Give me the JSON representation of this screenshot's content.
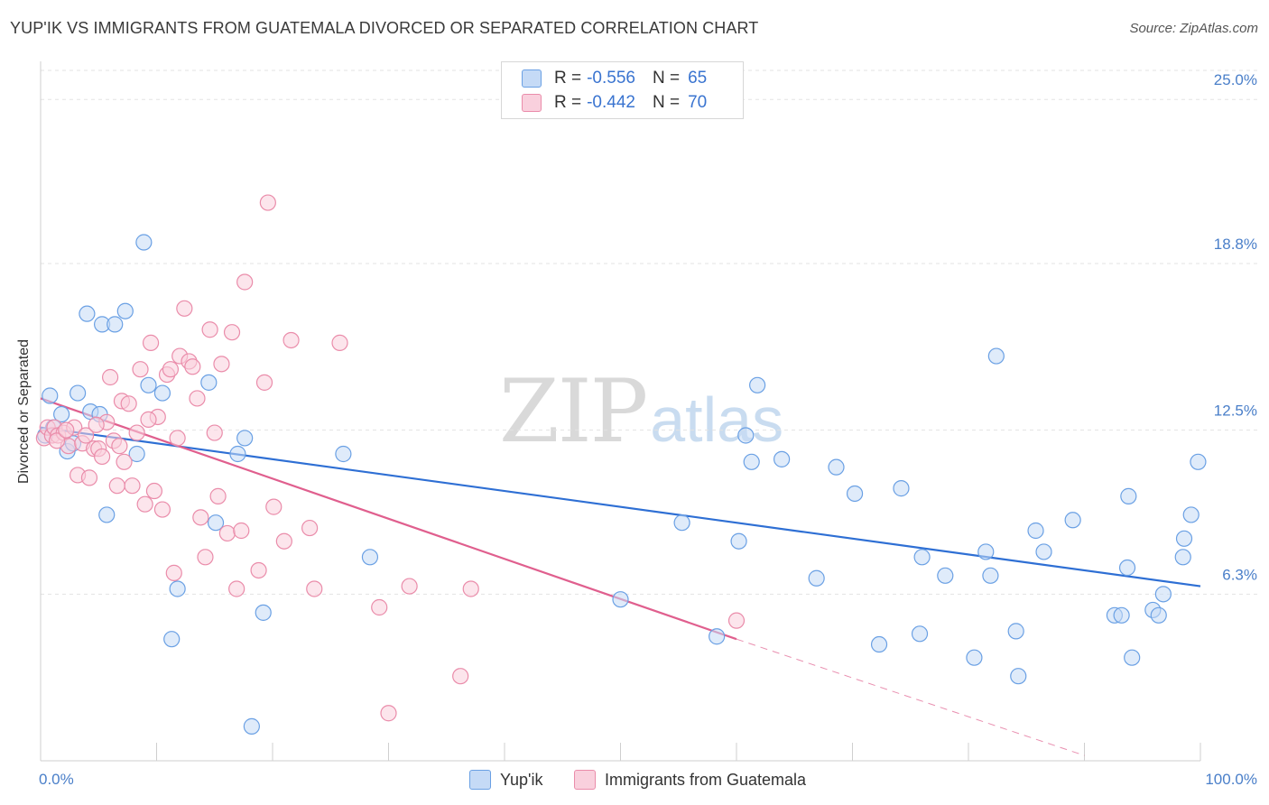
{
  "header": {
    "title": "YUP'IK VS IMMIGRANTS FROM GUATEMALA DIVORCED OR SEPARATED CORRELATION CHART",
    "source": "Source: ZipAtlas.com"
  },
  "watermark": {
    "zip": "ZIP",
    "atlas": "atlas"
  },
  "legend": {
    "rows": [
      {
        "r_label": "R =",
        "r_value": "-0.556",
        "n_label": "N =",
        "n_value": "65",
        "color": "#6aa0e4",
        "fill": "#c5daf6"
      },
      {
        "r_label": "R =",
        "r_value": "-0.442",
        "n_label": "N =",
        "n_value": "70",
        "color": "#ea8caa",
        "fill": "#f9d0dd"
      }
    ]
  },
  "bottom_legend": {
    "series_1": "Yup'ik",
    "series_2": "Immigrants from Guatemala"
  },
  "chart_data": {
    "type": "scatter",
    "title": "YUP'IK VS IMMIGRANTS FROM GUATEMALA DIVORCED OR SEPARATED CORRELATION CHART",
    "xlabel": "",
    "ylabel": "Divorced or Separated",
    "xlim": [
      0,
      100
    ],
    "ylim": [
      0,
      26.1
    ],
    "x_tick_labels": [
      "0.0%",
      "100.0%"
    ],
    "y_ticks": [
      6.3,
      12.5,
      18.8,
      25.0
    ],
    "y_tick_labels": [
      "6.3%",
      "12.5%",
      "18.8%",
      "25.0%"
    ],
    "grid": true,
    "legend_position": "top-center",
    "series": [
      {
        "name": "Yup'ik",
        "color": "#6aa0e4",
        "fill": "#c5daf6",
        "trend_color": "#2e6fd4",
        "trend": {
          "x0": 0,
          "y0": 12.6,
          "x1": 100,
          "y1": 6.6,
          "dash_to": null
        },
        "points": [
          [
            0.4,
            12.3
          ],
          [
            0.8,
            13.8
          ],
          [
            1.1,
            12.6
          ],
          [
            1.8,
            13.1
          ],
          [
            2.3,
            11.7
          ],
          [
            2.8,
            12.0
          ],
          [
            3.2,
            13.9
          ],
          [
            4.0,
            16.9
          ],
          [
            4.3,
            13.2
          ],
          [
            5.1,
            13.1
          ],
          [
            5.3,
            16.5
          ],
          [
            5.7,
            9.3
          ],
          [
            6.4,
            16.5
          ],
          [
            7.3,
            17.0
          ],
          [
            8.3,
            11.6
          ],
          [
            8.9,
            19.6
          ],
          [
            9.3,
            14.2
          ],
          [
            10.5,
            13.9
          ],
          [
            11.3,
            4.6
          ],
          [
            11.8,
            6.5
          ],
          [
            14.5,
            14.3
          ],
          [
            15.1,
            9.0
          ],
          [
            17.0,
            11.6
          ],
          [
            17.6,
            12.2
          ],
          [
            18.2,
            1.3
          ],
          [
            19.2,
            5.6
          ],
          [
            26.1,
            11.6
          ],
          [
            28.4,
            7.7
          ],
          [
            50.0,
            6.1
          ],
          [
            55.3,
            9.0
          ],
          [
            58.3,
            4.7
          ],
          [
            60.2,
            8.3
          ],
          [
            60.8,
            12.3
          ],
          [
            61.3,
            11.3
          ],
          [
            61.8,
            14.2
          ],
          [
            63.9,
            11.4
          ],
          [
            66.9,
            6.9
          ],
          [
            68.6,
            11.1
          ],
          [
            70.2,
            10.1
          ],
          [
            72.3,
            4.4
          ],
          [
            74.2,
            10.3
          ],
          [
            75.8,
            4.8
          ],
          [
            76.0,
            7.7
          ],
          [
            78.0,
            7.0
          ],
          [
            80.5,
            3.9
          ],
          [
            81.5,
            7.9
          ],
          [
            81.9,
            7.0
          ],
          [
            82.4,
            15.3
          ],
          [
            84.1,
            4.9
          ],
          [
            84.3,
            3.2
          ],
          [
            85.8,
            8.7
          ],
          [
            86.5,
            7.9
          ],
          [
            89.0,
            9.1
          ],
          [
            92.6,
            5.5
          ],
          [
            93.2,
            5.5
          ],
          [
            93.7,
            7.3
          ],
          [
            93.8,
            10.0
          ],
          [
            94.1,
            3.9
          ],
          [
            95.9,
            5.7
          ],
          [
            96.4,
            5.5
          ],
          [
            96.8,
            6.3
          ],
          [
            98.5,
            7.7
          ],
          [
            98.6,
            8.4
          ],
          [
            99.2,
            9.3
          ],
          [
            99.8,
            11.3
          ]
        ]
      },
      {
        "name": "Immigrants from Guatemala",
        "color": "#ea8caa",
        "fill": "#f9d0dd",
        "trend_color": "#e05f8e",
        "trend": {
          "x0": 0,
          "y0": 13.7,
          "x1": 60,
          "y1": 4.6,
          "dash_to": [
            90,
            0.2
          ]
        },
        "points": [
          [
            0.3,
            12.2
          ],
          [
            0.6,
            12.6
          ],
          [
            1.0,
            12.3
          ],
          [
            1.2,
            12.6
          ],
          [
            1.5,
            12.3
          ],
          [
            2.0,
            12.4
          ],
          [
            2.4,
            11.9
          ],
          [
            2.9,
            12.6
          ],
          [
            3.2,
            10.8
          ],
          [
            3.6,
            12.0
          ],
          [
            3.9,
            12.3
          ],
          [
            4.2,
            10.7
          ],
          [
            4.6,
            11.8
          ],
          [
            5.0,
            11.8
          ],
          [
            5.3,
            11.5
          ],
          [
            5.7,
            12.8
          ],
          [
            6.0,
            14.5
          ],
          [
            6.3,
            12.1
          ],
          [
            6.6,
            10.4
          ],
          [
            7.0,
            13.6
          ],
          [
            7.2,
            11.3
          ],
          [
            7.6,
            13.5
          ],
          [
            7.9,
            10.4
          ],
          [
            8.3,
            12.4
          ],
          [
            8.6,
            14.8
          ],
          [
            9.0,
            9.7
          ],
          [
            9.5,
            15.8
          ],
          [
            9.8,
            10.2
          ],
          [
            10.1,
            13.0
          ],
          [
            10.5,
            9.5
          ],
          [
            10.9,
            14.6
          ],
          [
            11.2,
            14.8
          ],
          [
            11.5,
            7.1
          ],
          [
            12.0,
            15.3
          ],
          [
            12.4,
            17.1
          ],
          [
            12.8,
            15.1
          ],
          [
            13.1,
            14.9
          ],
          [
            13.5,
            13.7
          ],
          [
            13.8,
            9.2
          ],
          [
            14.2,
            7.7
          ],
          [
            14.6,
            16.3
          ],
          [
            15.0,
            12.4
          ],
          [
            15.3,
            10.0
          ],
          [
            15.6,
            15.0
          ],
          [
            16.1,
            8.6
          ],
          [
            16.5,
            16.2
          ],
          [
            16.9,
            6.5
          ],
          [
            17.3,
            8.7
          ],
          [
            17.6,
            18.1
          ],
          [
            18.8,
            7.2
          ],
          [
            19.3,
            14.3
          ],
          [
            19.6,
            21.1
          ],
          [
            20.1,
            9.6
          ],
          [
            21.0,
            8.3
          ],
          [
            21.6,
            15.9
          ],
          [
            23.2,
            8.8
          ],
          [
            23.6,
            6.5
          ],
          [
            25.8,
            15.8
          ],
          [
            29.2,
            5.8
          ],
          [
            30.0,
            1.8
          ],
          [
            31.8,
            6.6
          ],
          [
            36.2,
            3.2
          ],
          [
            37.1,
            6.5
          ],
          [
            60.0,
            5.3
          ],
          [
            1.4,
            12.1
          ],
          [
            2.2,
            12.5
          ],
          [
            4.8,
            12.7
          ],
          [
            9.3,
            12.9
          ],
          [
            6.8,
            11.9
          ],
          [
            11.8,
            12.2
          ]
        ]
      }
    ]
  }
}
